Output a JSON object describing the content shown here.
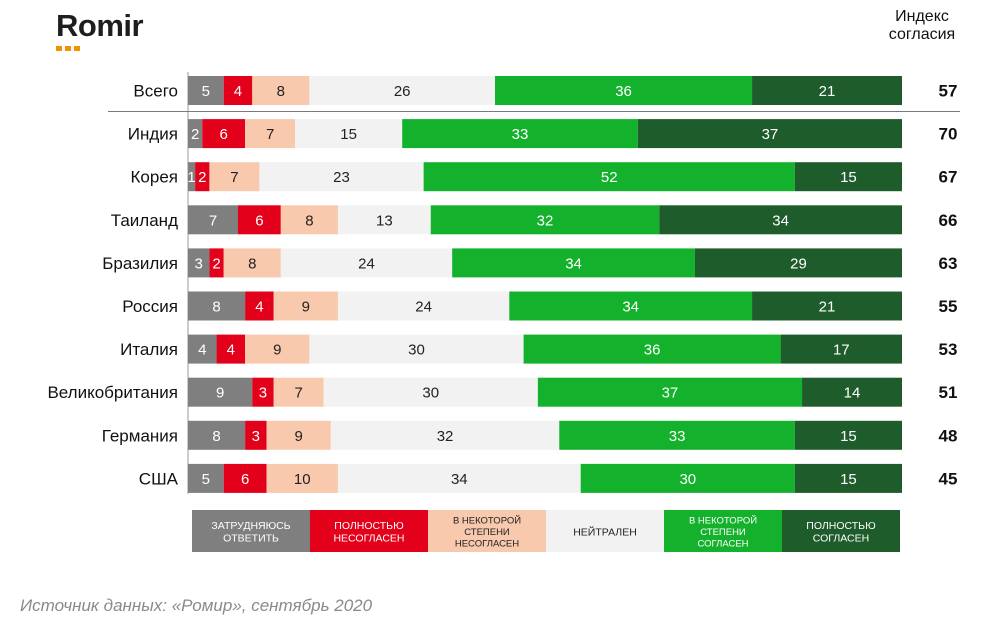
{
  "header": {
    "logo_text": "Romir",
    "index_title_line1": "Индекс",
    "index_title_line2": "согласия"
  },
  "source": "Источник данных: «Ромир», сентябрь 2020",
  "colors": {
    "hard_to_answer": "#7f7f7f",
    "fully_disagree": "#e2001a",
    "somewhat_disagree": "#f8c9ad",
    "neutral": "#f2f2f2",
    "somewhat_agree": "#14b22c",
    "fully_agree": "#1e5c2c"
  },
  "chart_data": {
    "type": "bar",
    "orientation": "horizontal",
    "stacked": true,
    "categories": [
      "Всего",
      "Индия",
      "Корея",
      "Таиланд",
      "Бразилия",
      "Россия",
      "Италия",
      "Великобритания",
      "Германия",
      "США"
    ],
    "series": [
      {
        "name": "Затрудняюсь ответить",
        "color": "#7f7f7f",
        "values": [
          5,
          2,
          1,
          7,
          3,
          8,
          4,
          9,
          8,
          5
        ]
      },
      {
        "name": "Полностью несогласен",
        "color": "#e2001a",
        "values": [
          4,
          6,
          2,
          6,
          2,
          4,
          4,
          3,
          3,
          6
        ]
      },
      {
        "name": "В некоторой степени несогласен",
        "color": "#f8c9ad",
        "values": [
          8,
          7,
          7,
          8,
          8,
          9,
          9,
          7,
          9,
          10
        ]
      },
      {
        "name": "Нейтрален",
        "color": "#f2f2f2",
        "values": [
          26,
          15,
          23,
          13,
          24,
          24,
          30,
          30,
          32,
          34
        ]
      },
      {
        "name": "В некоторой степени согласен",
        "color": "#14b22c",
        "values": [
          36,
          33,
          52,
          32,
          34,
          34,
          36,
          37,
          33,
          30
        ]
      },
      {
        "name": "Полностью согласен",
        "color": "#1e5c2c",
        "values": [
          21,
          37,
          15,
          34,
          29,
          21,
          17,
          14,
          15,
          15
        ]
      }
    ],
    "agreement_index": [
      57,
      70,
      67,
      66,
      63,
      55,
      53,
      51,
      48,
      45
    ],
    "legend": [
      {
        "label": "ЗАТРУДНЯЮСЬ ОТВЕТИТЬ",
        "color": "#7f7f7f",
        "text_color": "#ffffff"
      },
      {
        "label": "ПОЛНОСТЬЮ НЕСОГЛАСЕН",
        "color": "#e2001a",
        "text_color": "#ffffff"
      },
      {
        "label": "В НЕКОТОРОЙ СТЕПЕНИ НЕСОГЛАСЕН",
        "color": "#f8c9ad",
        "text_color": "#222222"
      },
      {
        "label": "НЕЙТРАЛЕН",
        "color": "#f2f2f2",
        "text_color": "#222222"
      },
      {
        "label": "В НЕКОТОРОЙ СТЕПЕНИ СОГЛАСЕН",
        "color": "#14b22c",
        "text_color": "#ffffff"
      },
      {
        "label": "ПОЛНОСТЬЮ СОГЛАСЕН",
        "color": "#1e5c2c",
        "text_color": "#ffffff"
      }
    ],
    "legend_placement": "bottom",
    "xlim": [
      0,
      100
    ],
    "grid": false
  }
}
